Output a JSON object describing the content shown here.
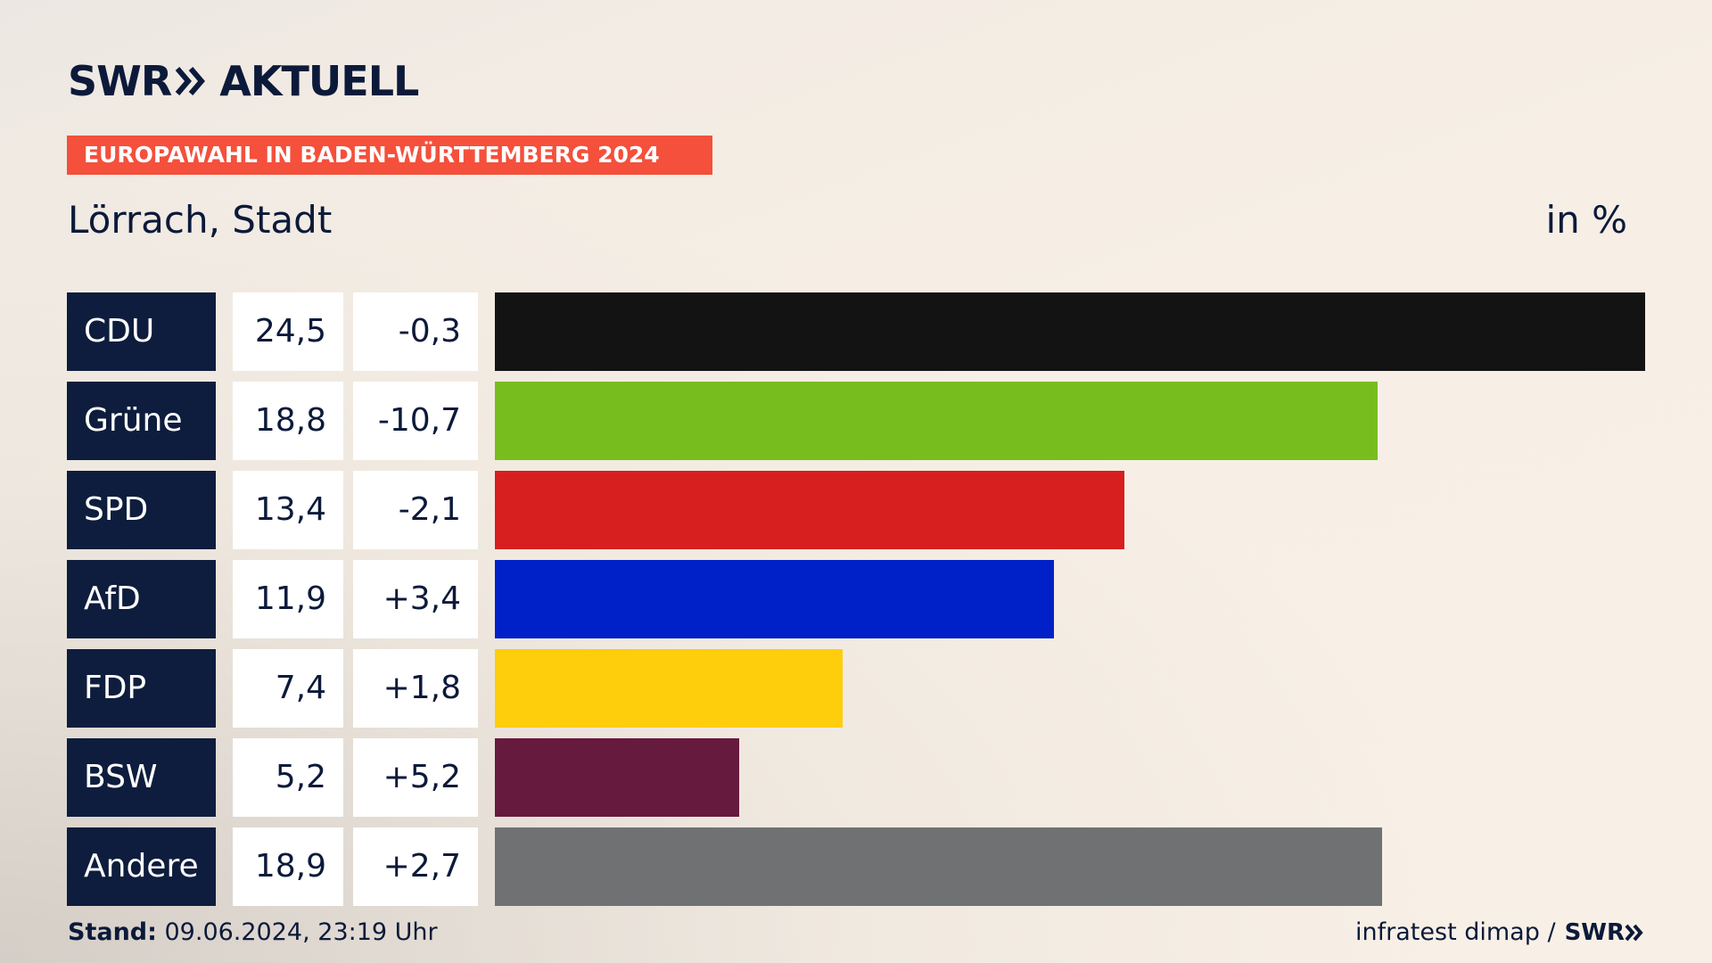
{
  "brand": {
    "swr": "SWR",
    "aktuell": "AKTUELL"
  },
  "banner": "EUROPAWAHL IN BADEN-WÜRTTEMBERG 2024",
  "region": "Lörrach, Stadt",
  "unit": "in %",
  "footer": {
    "stand_label": "Stand:",
    "stand_value": " 09.06.2024, 23:19 Uhr",
    "source": "infratest dimap /",
    "source_logo": "SWR"
  },
  "colors": {
    "navy": "#0e1d3d",
    "banner": "#f4503c"
  },
  "chart_data": {
    "type": "bar",
    "orientation": "horizontal",
    "categories": [
      "CDU",
      "Grüne",
      "SPD",
      "AfD",
      "FDP",
      "BSW",
      "Andere"
    ],
    "series": [
      {
        "values": [
          24.5,
          18.8,
          13.4,
          11.9,
          7.4,
          5.2,
          18.9
        ]
      }
    ],
    "differences": [
      "-0,3",
      "-10,7",
      "-2,1",
      "+3,4",
      "+1,8",
      "+5,2",
      "+2,7"
    ],
    "value_labels": [
      "24,5",
      "18,8",
      "13,4",
      "11,9",
      "7,4",
      "5,2",
      "18,9"
    ],
    "bar_colors": [
      "#131313",
      "#78bd1e",
      "#d71f1f",
      "#0021c8",
      "#fecd0b",
      "#661a3e",
      "#707173"
    ],
    "xlim": [
      0,
      24.5
    ],
    "grid": false,
    "legend": "none"
  }
}
